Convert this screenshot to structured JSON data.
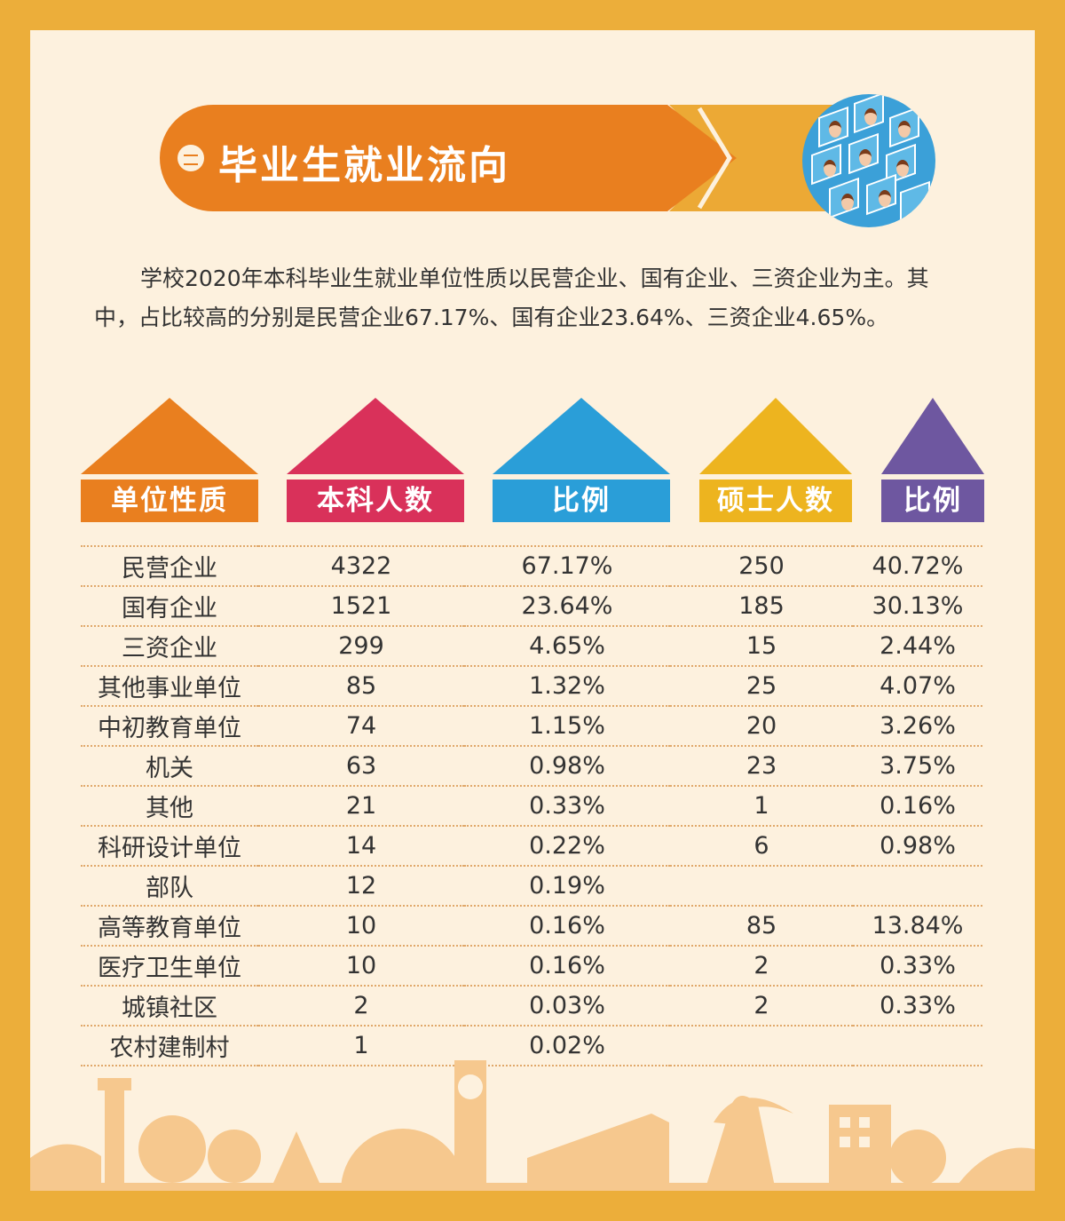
{
  "banner": {
    "title": "毕业生就业流向"
  },
  "intro": "学校2020年本科毕业生就业单位性质以民营企业、国有企业、三资企业为主。其中，占比较高的分别是民营企业67.17%、国有企业23.64%、三资企业4.65%。",
  "colors": {
    "orange": "#E97F1F",
    "crimson": "#D9315A",
    "blue": "#2A9ED8",
    "yellow": "#EDB41F",
    "purple": "#6E57A0"
  },
  "table": {
    "headers": [
      "单位性质",
      "本科人数",
      "比例",
      "硕士人数",
      "比例"
    ],
    "rows": [
      [
        "民营企业",
        "4322",
        "67.17%",
        "250",
        "40.72%"
      ],
      [
        "国有企业",
        "1521",
        "23.64%",
        "185",
        "30.13%"
      ],
      [
        "三资企业",
        "299",
        "4.65%",
        "15",
        "2.44%"
      ],
      [
        "其他事业单位",
        "85",
        "1.32%",
        "25",
        "4.07%"
      ],
      [
        "中初教育单位",
        "74",
        "1.15%",
        "20",
        "3.26%"
      ],
      [
        "机关",
        "63",
        "0.98%",
        "23",
        "3.75%"
      ],
      [
        "其他",
        "21",
        "0.33%",
        "1",
        "0.16%"
      ],
      [
        "科研设计单位",
        "14",
        "0.22%",
        "6",
        "0.98%"
      ],
      [
        "部队",
        "12",
        "0.19%",
        "",
        ""
      ],
      [
        "高等教育单位",
        "10",
        "0.16%",
        "85",
        "13.84%"
      ],
      [
        "医疗卫生单位",
        "10",
        "0.16%",
        "2",
        "0.33%"
      ],
      [
        "城镇社区",
        "2",
        "0.03%",
        "2",
        "0.33%"
      ],
      [
        "农村建制村",
        "1",
        "0.02%",
        "",
        ""
      ]
    ]
  }
}
